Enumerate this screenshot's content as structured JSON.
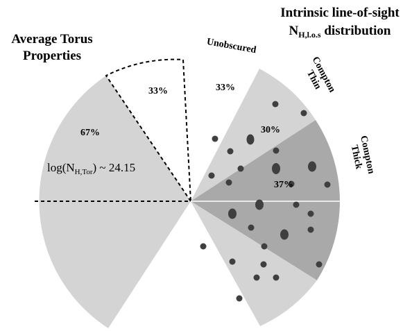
{
  "left_title": {
    "line1": "Average Torus",
    "line2": "Properties"
  },
  "left_segments": {
    "obscured": "67%",
    "unobscured": "33%"
  },
  "log_label": {
    "main": "log(N",
    "sub": "H,Tor",
    "rest": ") ~ 24.15"
  },
  "right_title": {
    "line1": "Intrinsic line-of-sight",
    "main": "N",
    "sub": "H,l.o.s",
    "rest": " distribution"
  },
  "right_segments": [
    {
      "label": "Unobscured",
      "percent": "33%"
    },
    {
      "label_line1": "Compton",
      "label_line2": "Thin",
      "percent": "30%"
    },
    {
      "label_line1": "Compton",
      "label_line2": "Thick",
      "percent": "37%"
    }
  ]
}
